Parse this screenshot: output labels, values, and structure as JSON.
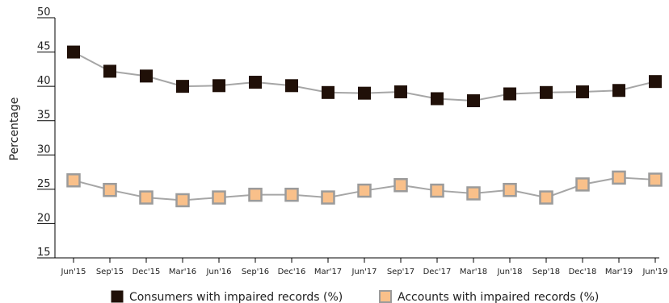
{
  "chart_data": {
    "type": "line",
    "title": "",
    "xlabel": "",
    "ylabel": "Percentage",
    "ylim": [
      15,
      50
    ],
    "yticks": [
      15,
      20,
      25,
      30,
      35,
      40,
      45,
      50
    ],
    "grid": false,
    "legend_position": "bottom",
    "categories": [
      "Jun'15",
      "Sep'15",
      "Dec'15",
      "Mar'16",
      "Jun'16",
      "Sep'16",
      "Dec'16",
      "Mar'17",
      "Jun'17",
      "Sep'17",
      "Dec'17",
      "Mar'18",
      "Jun'18",
      "Sep'18",
      "Dec'18",
      "Mar'19",
      "Jun'19"
    ],
    "series": [
      {
        "name": "Consumers with impaired records (%)",
        "values": [
          45.0,
          42.2,
          41.5,
          40.0,
          40.1,
          40.6,
          40.1,
          39.1,
          39.0,
          39.2,
          38.2,
          37.9,
          38.9,
          39.1,
          39.2,
          39.4,
          40.7
        ],
        "marker_fill": "#201008",
        "marker_edge": "#201008"
      },
      {
        "name": "Accounts with impaired records (%)",
        "values": [
          26.3,
          24.9,
          23.8,
          23.4,
          23.8,
          24.2,
          24.2,
          23.8,
          24.8,
          25.6,
          24.8,
          24.4,
          24.9,
          23.8,
          25.7,
          26.7,
          26.4
        ],
        "marker_fill": "#f9c08a",
        "marker_edge": "#9b9b9b"
      }
    ],
    "line_color": "#a6a6a6"
  }
}
